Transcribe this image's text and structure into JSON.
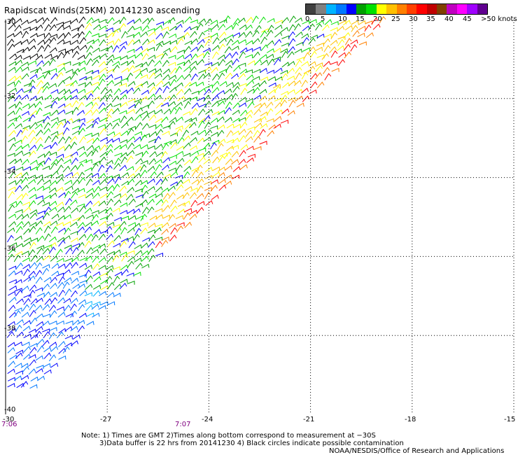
{
  "title": "Rapidscat Winds(25KM) 20141230 ascending",
  "color_scale": {
    "labels": [
      "0",
      "5",
      "10",
      "15",
      "20",
      "25",
      "30",
      "35",
      "40",
      "45",
      ">50 knots"
    ],
    "colors": [
      "#404040",
      "#808080",
      "#00b4ff",
      "#0078ff",
      "#0000ff",
      "#00a000",
      "#00e000",
      "#ffff00",
      "#ffc000",
      "#ff8000",
      "#ff4000",
      "#ff0000",
      "#c00000",
      "#804000",
      "#c000c0",
      "#ff00ff",
      "#a000ff",
      "#600090"
    ]
  },
  "map": {
    "lat_labels": [
      "-30",
      "-32",
      "-34",
      "-36",
      "-38",
      "-40"
    ],
    "lon_labels": [
      "-30",
      "-27",
      "-24",
      "-21",
      "-18",
      "-15"
    ],
    "lat_values": [
      -30,
      -32,
      -34,
      -36,
      -38,
      -40
    ],
    "lon_values": [
      -30,
      -27,
      -24,
      -21,
      -18,
      -15
    ],
    "time_labels": [
      "7:06",
      "7:07"
    ]
  },
  "notes": {
    "line1": "Note: 1) Times are GMT 2)Times along bottom correspond to measurement at −30S",
    "line2": "3)Data buffer is 22 hrs from 20141230 4) Black circles indicate possible contamination",
    "line3": "NOAA/NESDIS/Office of Research and Applications"
  }
}
